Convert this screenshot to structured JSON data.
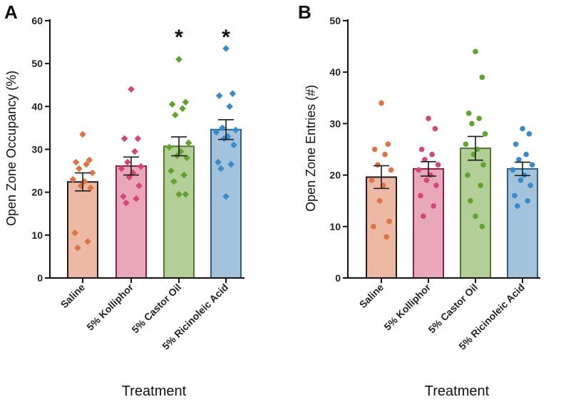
{
  "chart_data": [
    {
      "panel": "A",
      "type": "bar",
      "point_shape": "diamond",
      "title": "",
      "xlabel": "Treatment",
      "ylabel": "Open Zone Occupancy (%)",
      "ylim": [
        0,
        60
      ],
      "yticks": [
        0,
        10,
        20,
        30,
        40,
        50,
        60
      ],
      "categories": [
        "Saline",
        "5% Kolliphor",
        "5% Castor Oil",
        "5% Ricinoleic Acid"
      ],
      "means": [
        22.4,
        26.1,
        30.7,
        34.6
      ],
      "sem": [
        2.1,
        2.1,
        2.2,
        2.3
      ],
      "significance": [
        "",
        "",
        "*",
        "*"
      ],
      "points": [
        [
          33.5,
          27.5,
          27.0,
          26.5,
          25.5,
          24.5,
          23.0,
          22.5,
          21.5,
          21.0,
          10.5,
          8.5,
          7.0
        ],
        [
          44.0,
          32.5,
          32.5,
          29.5,
          27.0,
          26.0,
          25.5,
          24.5,
          23.5,
          21.5,
          19.0,
          18.5,
          17.5
        ],
        [
          51.0,
          41.0,
          40.5,
          39.5,
          38.0,
          31.5,
          30.5,
          29.5,
          28.5,
          28.0,
          25.0,
          24.0,
          22.5,
          19.5,
          19.5
        ],
        [
          53.5,
          43.0,
          42.5,
          40.0,
          35.0,
          34.5,
          34.0,
          33.0,
          32.5,
          31.0,
          27.0,
          26.5,
          25.5,
          19.0
        ]
      ]
    },
    {
      "panel": "B",
      "type": "bar",
      "point_shape": "circle",
      "title": "",
      "xlabel": "Treatment",
      "ylabel": "Open Zone Entries (#)",
      "ylim": [
        0,
        50
      ],
      "yticks": [
        0,
        10,
        20,
        30,
        40,
        50
      ],
      "categories": [
        "Saline",
        "5% Kolliphor",
        "5% Castor Oil",
        "5% Ricinoleic Acid"
      ],
      "means": [
        19.6,
        21.2,
        25.2,
        21.2
      ],
      "sem": [
        2.2,
        1.4,
        2.3,
        1.3
      ],
      "significance": [
        "",
        "",
        "",
        ""
      ],
      "points": [
        [
          34,
          26,
          25,
          24,
          22,
          21,
          19,
          18,
          15,
          11,
          10,
          8
        ],
        [
          31,
          29,
          25,
          24,
          23,
          22,
          21,
          20,
          19,
          18,
          16,
          14,
          12
        ],
        [
          44,
          39,
          32,
          31,
          30,
          28,
          26,
          25,
          24,
          22,
          20,
          18,
          15,
          12,
          10
        ],
        [
          29,
          28,
          26,
          24,
          23,
          22,
          21,
          20,
          19,
          18,
          16,
          15,
          14
        ]
      ]
    }
  ],
  "colors": {
    "bar_fill": [
      "#edb9a4",
      "#e8a8ba",
      "#b3cf98",
      "#a3c3dd"
    ],
    "bar_edge": [
      "#1a1a1a",
      "#8a2048",
      "#4e7a2a",
      "#2a5f86"
    ],
    "point": [
      "#dd7444",
      "#d6457a",
      "#62a22e",
      "#3a8ac8"
    ],
    "axis": "#111111"
  }
}
